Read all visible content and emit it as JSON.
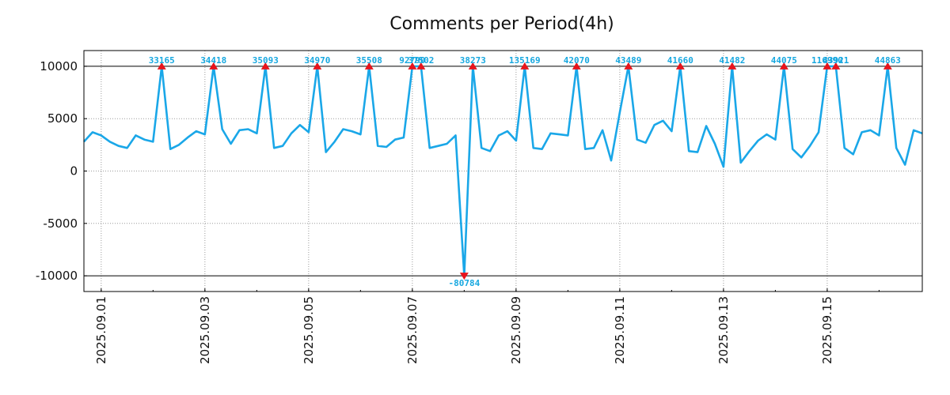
{
  "chart_data": {
    "type": "line",
    "title": "Comments per Period(4h)",
    "xlabel": "",
    "ylabel": "",
    "grid": true,
    "x_start": "2025.08.31 16:00",
    "period_hours": 4,
    "x_tick_labels": [
      "2025.09.01",
      "2025.09.03",
      "2025.09.05",
      "2025.09.07",
      "2025.09.09",
      "2025.09.11",
      "2025.09.13",
      "2025.09.15"
    ],
    "y_tick_labels": [
      "10000",
      "5000",
      "0",
      "-5000",
      "-10000"
    ],
    "y_ticks": [
      10000,
      5000,
      0,
      -5000,
      -10000
    ],
    "ylim": [
      -11500,
      11500
    ],
    "clip_limits": [
      -10000,
      10000
    ],
    "xlim_index": [
      0,
      97
    ],
    "series": [
      {
        "name": "comments",
        "color": "#1aa7e8",
        "values": [
          2800,
          3700,
          3400,
          2800,
          2400,
          2200,
          3400,
          3000,
          2800,
          10000,
          2100,
          2500,
          3200,
          3800,
          3500,
          10000,
          4000,
          2600,
          3900,
          4000,
          3600,
          10000,
          2200,
          2400,
          3600,
          4400,
          3700,
          10000,
          1800,
          2800,
          4000,
          3800,
          3500,
          10000,
          2400,
          2300,
          3000,
          3200,
          10000,
          10000,
          2200,
          2400,
          2600,
          3400,
          -10000,
          10000,
          2200,
          1900,
          3400,
          3800,
          2900,
          10000,
          2200,
          2100,
          3600,
          3500,
          3400,
          10000,
          2100,
          2200,
          3900,
          1000,
          5600,
          10000,
          3000,
          2700,
          4400,
          4800,
          3800,
          10000,
          1900,
          1800,
          4300,
          2600,
          400,
          10000,
          800,
          1900,
          2900,
          3500,
          3000,
          10000,
          2100,
          1300,
          2400,
          3700,
          10000,
          10000,
          2200,
          1600,
          3700,
          3900,
          3400,
          10000,
          2200,
          600,
          3900,
          3600
        ]
      }
    ],
    "annotations": [
      {
        "index": 9,
        "text": "33165",
        "direction": "up"
      },
      {
        "index": 15,
        "text": "34418",
        "direction": "up"
      },
      {
        "index": 21,
        "text": "35093",
        "direction": "up"
      },
      {
        "index": 27,
        "text": "34970",
        "direction": "up"
      },
      {
        "index": 33,
        "text": "35508",
        "direction": "up"
      },
      {
        "index": 38,
        "text": "92790",
        "direction": "up"
      },
      {
        "index": 39,
        "text": "37502",
        "direction": "up"
      },
      {
        "index": 44,
        "text": "-80784",
        "direction": "down"
      },
      {
        "index": 45,
        "text": "38273",
        "direction": "up"
      },
      {
        "index": 51,
        "text": "135169",
        "direction": "up"
      },
      {
        "index": 57,
        "text": "42070",
        "direction": "up"
      },
      {
        "index": 63,
        "text": "43489",
        "direction": "up"
      },
      {
        "index": 69,
        "text": "41660",
        "direction": "up"
      },
      {
        "index": 75,
        "text": "41482",
        "direction": "up"
      },
      {
        "index": 81,
        "text": "44075",
        "direction": "up"
      },
      {
        "index": 86,
        "text": "116990",
        "direction": "up"
      },
      {
        "index": 87,
        "text": "43921",
        "direction": "up"
      },
      {
        "index": 93,
        "text": "44863",
        "direction": "up"
      }
    ],
    "colors": {
      "line": "#1aa7e8",
      "marker": "#e8141c",
      "label": "#17a8e0",
      "axis": "#000000",
      "grid": "#9a9a9a"
    }
  }
}
